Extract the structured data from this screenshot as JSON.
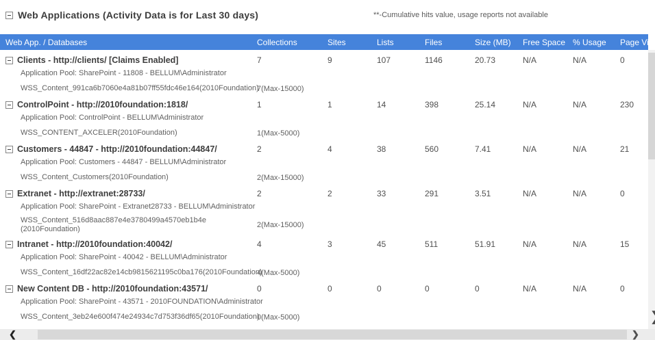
{
  "page": {
    "heading": "Web Applications (Activity Data is for Last 30 days)",
    "note": "**-Cumulative hits value, usage reports not available"
  },
  "colors": {
    "header_bg": "#4583db",
    "header_text": "#ffffff",
    "title_text": "#3e3e3e",
    "sub_text": "#5f5f5f"
  },
  "table": {
    "columns": [
      "Web App. / Databases",
      "Collections",
      "Sites",
      "Lists",
      "Files",
      "Size (MB)",
      "Free Space",
      "% Usage",
      "Page Views"
    ],
    "groups": [
      {
        "title": "Clients - http://clients/ [Claims Enabled]",
        "app_pool": "Application Pool: SharePoint - 11808 - BELLUM\\Administrator",
        "database": "WSS_Content_991ca6b7060e4a81b07ff55fdc46e164(2010Foundation)",
        "db_collections": "7(Max-15000)",
        "values": [
          "7",
          "9",
          "107",
          "1146",
          "20.73",
          "N/A",
          "N/A",
          "0"
        ]
      },
      {
        "title": "ControlPoint - http://2010foundation:1818/",
        "app_pool": "Application Pool: ControlPoint - BELLUM\\Administrator",
        "database": "WSS_CONTENT_AXCELER(2010Foundation)",
        "db_collections": "1(Max-5000)",
        "values": [
          "1",
          "1",
          "14",
          "398",
          "25.14",
          "N/A",
          "N/A",
          "230"
        ]
      },
      {
        "title": "Customers - 44847 - http://2010foundation:44847/",
        "app_pool": "Application Pool: Customers - 44847 - BELLUM\\Administrator",
        "database": "WSS_Content_Customers(2010Foundation)",
        "db_collections": "2(Max-15000)",
        "values": [
          "2",
          "4",
          "38",
          "560",
          "7.41",
          "N/A",
          "N/A",
          "21"
        ]
      },
      {
        "title": "Extranet - http://extranet:28733/",
        "app_pool": "Application Pool: SharePoint - Extranet28733 - BELLUM\\Administrator",
        "database": "WSS_Content_516d8aac887e4e3780499a4570eb1b4e\n(2010Foundation)",
        "db_collections": "2(Max-15000)",
        "values": [
          "2",
          "2",
          "33",
          "291",
          "3.51",
          "N/A",
          "N/A",
          "0"
        ]
      },
      {
        "title": "Intranet - http://2010foundation:40042/",
        "app_pool": "Application Pool: SharePoint - 40042 - BELLUM\\Administrator",
        "database": "WSS_Content_16df22ac82e14cb9815621195c0ba176(2010Foundation)",
        "db_collections": "4(Max-5000)",
        "values": [
          "4",
          "3",
          "45",
          "511",
          "51.91",
          "N/A",
          "N/A",
          "15"
        ]
      },
      {
        "title": "New Content DB - http://2010foundation:43571/",
        "app_pool": "Application Pool: SharePoint - 43571 - 2010FOUNDATION\\Administrator",
        "database": "WSS_Content_3eb24e600f474e24934c7d753f36df65(2010Foundation)",
        "db_collections": "0(Max-5000)",
        "values": [
          "0",
          "0",
          "0",
          "0",
          "0",
          "N/A",
          "N/A",
          "0"
        ]
      }
    ]
  },
  "scrollbars": {
    "left_arrow": "❮",
    "right_arrow": "❯"
  }
}
